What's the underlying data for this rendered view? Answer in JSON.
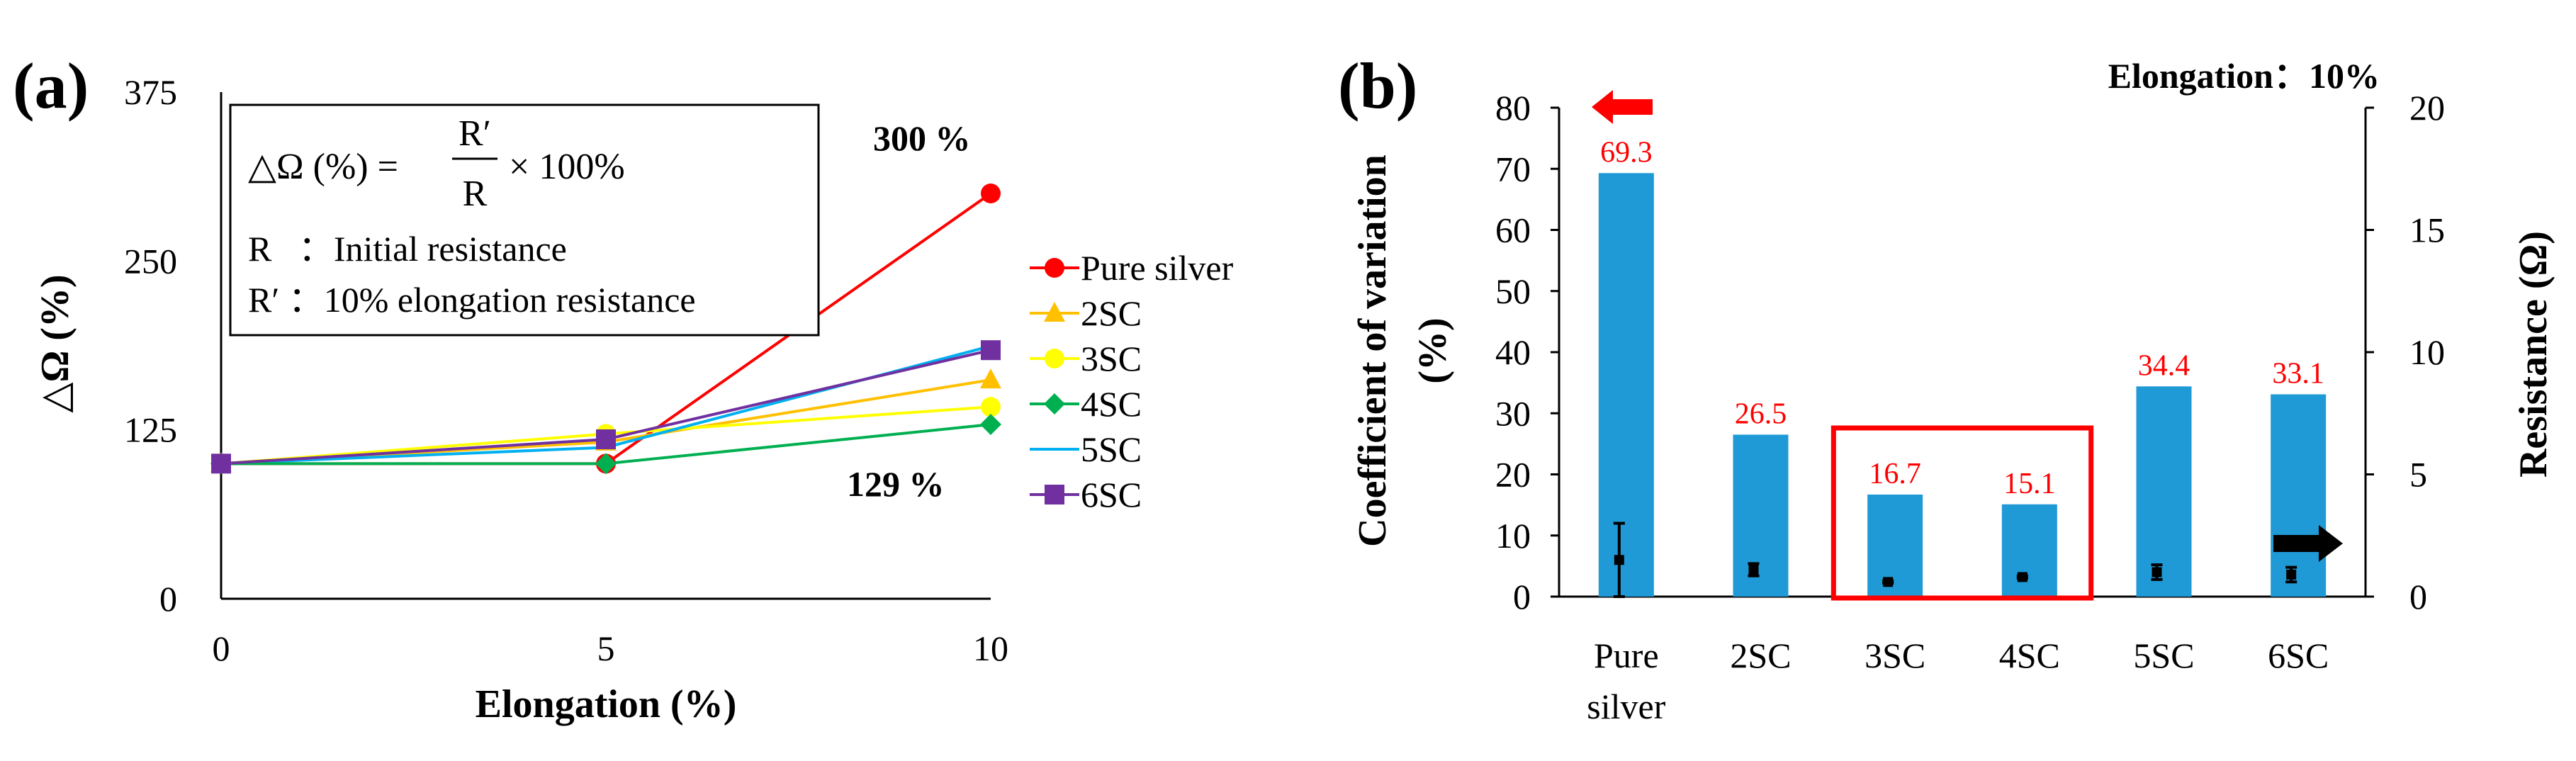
{
  "chart_data": [
    {
      "panel": "(a)",
      "type": "line",
      "xlabel": "Elongation (%)",
      "ylabel": "△Ω (%)",
      "x": [
        0,
        5,
        10
      ],
      "xlim": [
        0,
        10
      ],
      "ylim": [
        0,
        375
      ],
      "xticks": [
        "0",
        "5",
        "10"
      ],
      "yticks": [
        "0",
        "125",
        "250",
        "375"
      ],
      "series": [
        {
          "name": "Pure silver",
          "marker": "circle",
          "color": "#ff0000",
          "values": [
            100,
            100,
            300
          ]
        },
        {
          "name": "2SC",
          "marker": "triangle",
          "color": "#ffc000",
          "values": [
            100,
            116,
            162
          ]
        },
        {
          "name": "3SC",
          "marker": "circle",
          "color": "#ffff00",
          "values": [
            100,
            122,
            142
          ]
        },
        {
          "name": "4SC",
          "marker": "diamond",
          "color": "#00b050",
          "values": [
            100,
            100,
            129
          ]
        },
        {
          "name": "5SC",
          "marker": "none",
          "color": "#00b0f0",
          "values": [
            100,
            112,
            187
          ]
        },
        {
          "name": "6SC",
          "marker": "square",
          "color": "#7030a0",
          "values": [
            100,
            118,
            184
          ]
        }
      ],
      "annotations": {
        "top": "300 %",
        "bottom": "129 %"
      },
      "formula": {
        "lhs": "△Ω (%) =",
        "numerator": "R′",
        "denominator": "R",
        "rhs": "× 100%",
        "line1": "R   ：Initial resistance",
        "line2": "R′ ：10% elongation resistance"
      }
    },
    {
      "panel": "(b)",
      "type": "bar",
      "title": "Elongation：10%",
      "categories": [
        "Pure silver",
        "2SC",
        "3SC",
        "4SC",
        "5SC",
        "6SC"
      ],
      "category_lines": [
        [
          "Pure",
          "silver"
        ],
        [
          "2SC"
        ],
        [
          "3SC"
        ],
        [
          "4SC"
        ],
        [
          "5SC"
        ],
        [
          "6SC"
        ]
      ],
      "cv_values": [
        69.3,
        26.5,
        16.7,
        15.1,
        34.4,
        33.1
      ],
      "cv_labels": [
        "69.3",
        "26.5",
        "16.7",
        "15.1",
        "34.4",
        "33.1"
      ],
      "resistance_values": [
        1.5,
        1.1,
        0.6,
        0.8,
        1.0,
        0.9
      ],
      "resistance_error": [
        1.5,
        0.25,
        0.05,
        0.05,
        0.3,
        0.3
      ],
      "ylabel_left": [
        "Coefficient of variation",
        "(%)"
      ],
      "ylabel_right": "Resistance (Ω)",
      "ylim_left": [
        0,
        80
      ],
      "ylim_right": [
        0,
        20
      ],
      "yticks_left": [
        "0",
        "10",
        "20",
        "30",
        "40",
        "50",
        "60",
        "70",
        "80"
      ],
      "yticks_right": [
        "0",
        "5",
        "10",
        "15",
        "20"
      ],
      "bar_color": "#1f9ad6",
      "highlight_box": [
        "3SC",
        "4SC"
      ],
      "highlight_color": "#ff0000",
      "arrows": {
        "left_color": "#ff0000",
        "right_color": "#000000"
      }
    }
  ]
}
